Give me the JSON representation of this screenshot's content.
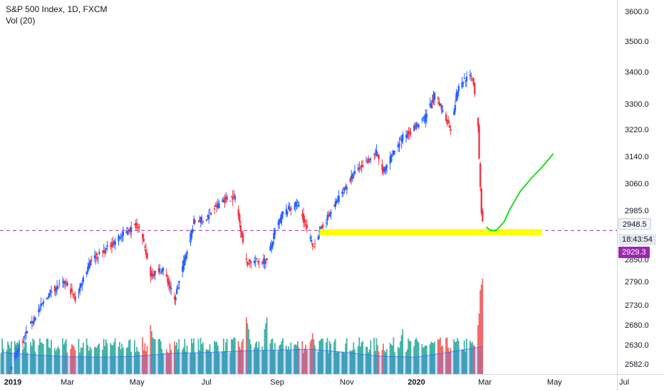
{
  "legend": {
    "title": "S&P 500 Index, 1D, FXCM",
    "volume": "Vol (20)"
  },
  "colors": {
    "up": "#2962ff",
    "down": "#f23645",
    "vol_up": "#26a69a",
    "vol_down": "#ef5350",
    "vol_ma": "#2962ff",
    "support_zone": "#ffff00",
    "projection": "#22dd22",
    "crosshair": "#9c27b0"
  },
  "price_labels": {
    "last": "2948.5",
    "countdown": "18:43:54",
    "crosshair": "2929.3"
  },
  "chart_data": {
    "type": "candlestick",
    "title": "S&P 500 Index, 1D, FXCM",
    "price_axis": {
      "ticks": [
        "3600.0",
        "3500.0",
        "3400.0",
        "3300.0",
        "3220.0",
        "3140.0",
        "3060.0",
        "2985.0",
        "2850.0",
        "2790.0",
        "2730.0",
        "2680.0",
        "2630.0",
        "2582.0"
      ],
      "scale": "log",
      "range": [
        2560,
        3640
      ]
    },
    "time_axis": {
      "ticks": [
        "2019",
        "Mar",
        "May",
        "Jul",
        "Sep",
        "Nov",
        "2020",
        "Mar",
        "May",
        "Jul"
      ],
      "bold": [
        "2019",
        "2020"
      ],
      "range": [
        "2019-01-01",
        "2020-08-05"
      ]
    },
    "price_path": [
      [
        "2019-01-02",
        2500
      ],
      [
        "2019-01-15",
        2610
      ],
      [
        "2019-01-31",
        2700
      ],
      [
        "2019-02-15",
        2770
      ],
      [
        "2019-02-28",
        2790
      ],
      [
        "2019-03-08",
        2745
      ],
      [
        "2019-03-21",
        2850
      ],
      [
        "2019-04-01",
        2870
      ],
      [
        "2019-04-15",
        2910
      ],
      [
        "2019-04-30",
        2945
      ],
      [
        "2019-05-03",
        2945
      ],
      [
        "2019-05-13",
        2812
      ],
      [
        "2019-05-24",
        2826
      ],
      [
        "2019-06-03",
        2744
      ],
      [
        "2019-06-20",
        2954
      ],
      [
        "2019-07-01",
        2964
      ],
      [
        "2019-07-15",
        3015
      ],
      [
        "2019-07-26",
        3025
      ],
      [
        "2019-08-05",
        2844
      ],
      [
        "2019-08-15",
        2847
      ],
      [
        "2019-08-23",
        2847
      ],
      [
        "2019-08-30",
        2926
      ],
      [
        "2019-09-06",
        2979
      ],
      [
        "2019-09-19",
        3006
      ],
      [
        "2019-10-02",
        2887
      ],
      [
        "2019-10-10",
        2938
      ],
      [
        "2019-10-25",
        3022
      ],
      [
        "2019-11-08",
        3093
      ],
      [
        "2019-11-27",
        3153
      ],
      [
        "2019-12-03",
        3093
      ],
      [
        "2019-12-18",
        3192
      ],
      [
        "2019-12-31",
        3230
      ],
      [
        "2020-01-08",
        3253
      ],
      [
        "2020-01-17",
        3330
      ],
      [
        "2020-01-31",
        3225
      ],
      [
        "2020-02-06",
        3345
      ],
      [
        "2020-02-12",
        3379
      ],
      [
        "2020-02-19",
        3386
      ],
      [
        "2020-02-21",
        3338
      ],
      [
        "2020-02-24",
        3225
      ],
      [
        "2020-02-25",
        3128
      ],
      [
        "2020-02-27",
        2978
      ],
      [
        "2020-02-28",
        2954
      ]
    ],
    "volume_ma": [
      [
        "2019-01-02",
        2612
      ],
      [
        "2019-02-01",
        2606
      ],
      [
        "2019-03-01",
        2602
      ],
      [
        "2019-04-01",
        2601
      ],
      [
        "2019-05-01",
        2603
      ],
      [
        "2019-06-01",
        2610
      ],
      [
        "2019-07-01",
        2612
      ],
      [
        "2019-08-01",
        2616
      ],
      [
        "2019-09-01",
        2618
      ],
      [
        "2019-10-01",
        2620
      ],
      [
        "2019-11-01",
        2612
      ],
      [
        "2019-12-01",
        2603
      ],
      [
        "2020-01-01",
        2601
      ],
      [
        "2020-02-01",
        2614
      ],
      [
        "2020-02-20",
        2623
      ],
      [
        "2020-02-28",
        2627
      ]
    ],
    "volume_spikes": [
      [
        "2019-05-13",
        2680
      ],
      [
        "2019-08-05",
        2700
      ],
      [
        "2019-08-23",
        2700
      ],
      [
        "2019-10-02",
        2660
      ],
      [
        "2019-12-20",
        2670
      ],
      [
        "2020-02-24",
        2680
      ],
      [
        "2020-02-27",
        2740
      ],
      [
        "2020-02-28",
        2800
      ]
    ],
    "support_zone": {
      "from": "2019-10-08",
      "to": "2020-04-20",
      "low": 2917,
      "high": 2934
    },
    "projection": [
      [
        "2020-03-02",
        2940
      ],
      [
        "2020-03-06",
        2930
      ],
      [
        "2020-03-11",
        2930
      ],
      [
        "2020-03-18",
        2955
      ],
      [
        "2020-03-23",
        2990
      ],
      [
        "2020-04-01",
        3040
      ],
      [
        "2020-04-10",
        3075
      ],
      [
        "2020-04-20",
        3110
      ],
      [
        "2020-04-30",
        3150
      ]
    ],
    "reference_line": {
      "price": 2930,
      "style": "dashed"
    }
  }
}
